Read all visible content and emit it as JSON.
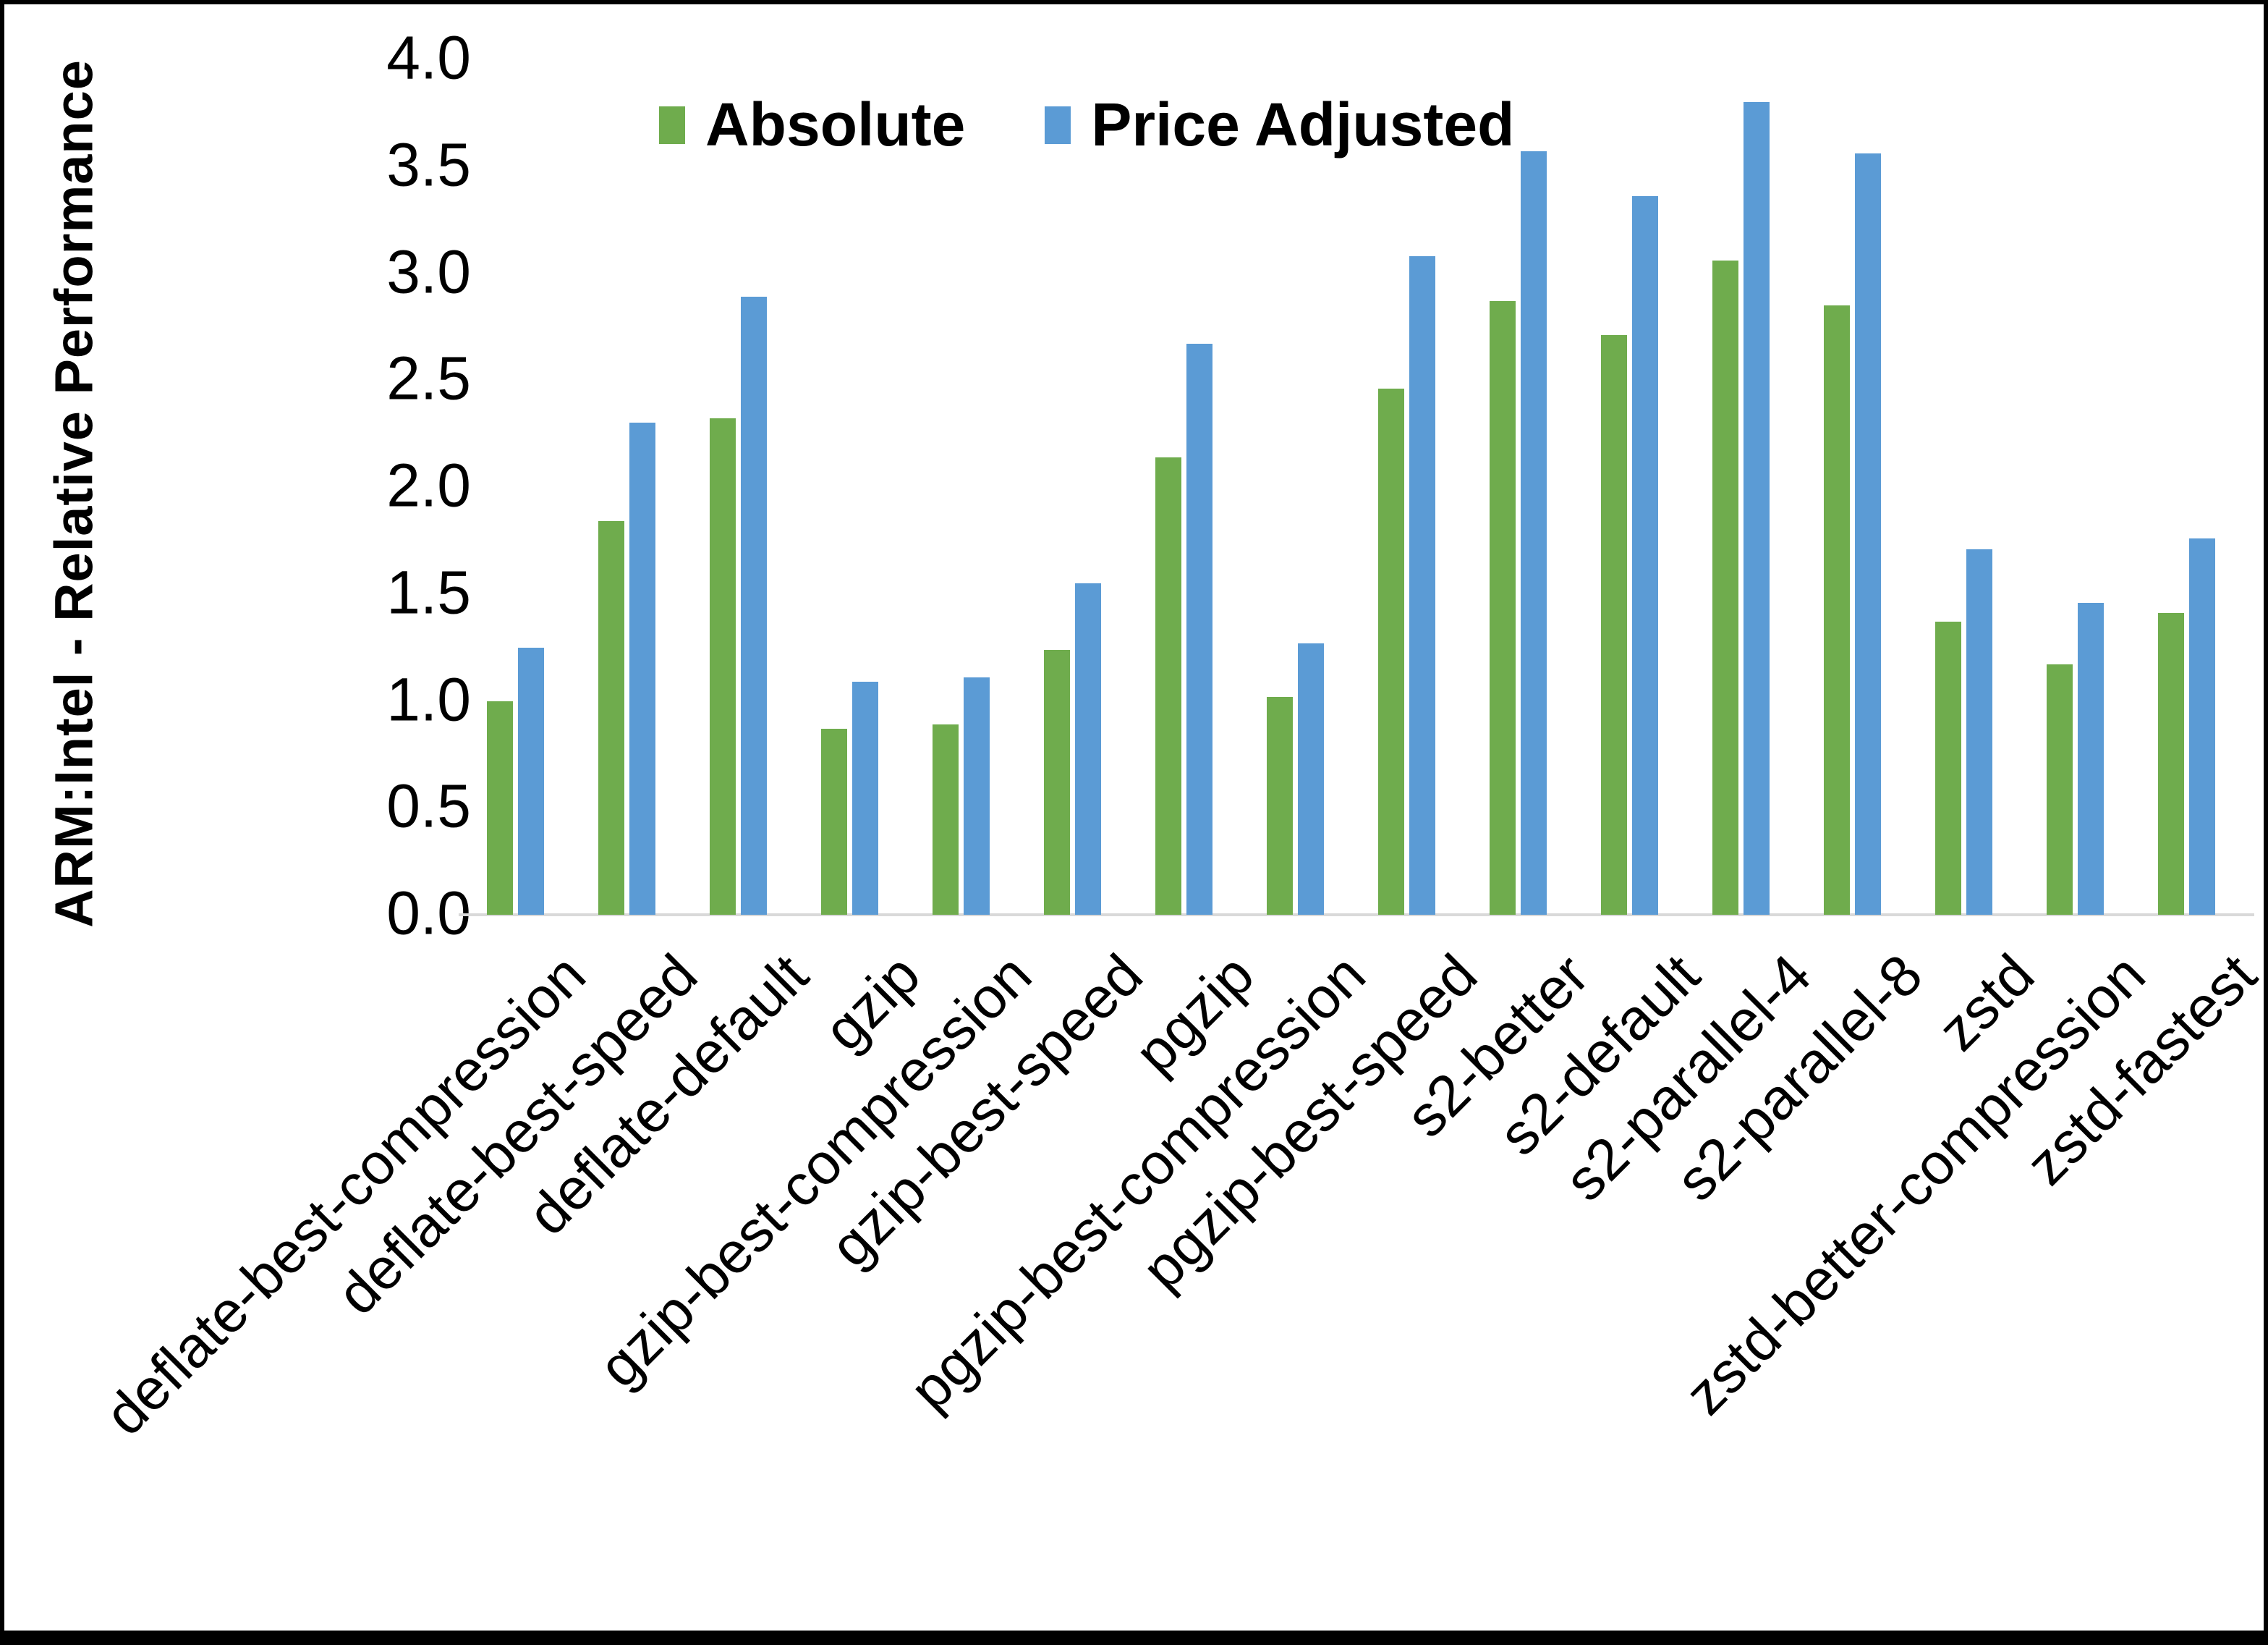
{
  "legend": {
    "items": [
      {
        "label": "Absolute",
        "color": "#6FAC4D"
      },
      {
        "label": "Price Adjusted",
        "color": "#5B9BD5"
      }
    ]
  },
  "y_axis": {
    "title": "ARM:Intel - Relative Performance",
    "tick_labels": [
      "4.0",
      "3.5",
      "3.0",
      "2.5",
      "2.0",
      "1.5",
      "1.0",
      "0.5",
      "0.0"
    ],
    "tick_values": [
      4.0,
      3.5,
      3.0,
      2.5,
      2.0,
      1.5,
      1.0,
      0.5,
      0.0
    ]
  },
  "colors": {
    "absolute_green": "#6FAC4D",
    "price_adjusted_blue": "#5B9BD5",
    "axis_line_gray": "#d9d9d9",
    "text_black": "#000000"
  },
  "chart_data": {
    "type": "bar",
    "title": "",
    "xlabel": "",
    "ylabel": "ARM:Intel - Relative Performance",
    "ylim": [
      0,
      4
    ],
    "ytick_step": 0.5,
    "grid": false,
    "legend_position": "top-center",
    "categories": [
      "deflate-best-compression",
      "deflate-best-speed",
      "deflate-default",
      "gzip",
      "gzip-best-compression",
      "gzip-best-speed",
      "pgzip",
      "pgzip-best-compression",
      "pgzip-best-speed",
      "s2-better",
      "s2-default",
      "s2-parallel-4",
      "s2-parallel-8",
      "zstd",
      "zstd-better-compression",
      "zstd-fastest"
    ],
    "series": [
      {
        "name": "Absolute",
        "color": "#6FAC4D",
        "values": [
          1.0,
          1.84,
          2.32,
          0.87,
          0.89,
          1.24,
          2.14,
          1.02,
          2.46,
          2.87,
          2.71,
          3.06,
          2.85,
          1.37,
          1.17,
          1.41
        ]
      },
      {
        "name": "Price Adjusted",
        "color": "#5B9BD5",
        "values": [
          1.25,
          2.3,
          2.89,
          1.09,
          1.11,
          1.55,
          2.67,
          1.27,
          3.08,
          3.57,
          3.36,
          3.8,
          3.56,
          1.71,
          1.46,
          1.76
        ]
      }
    ]
  }
}
